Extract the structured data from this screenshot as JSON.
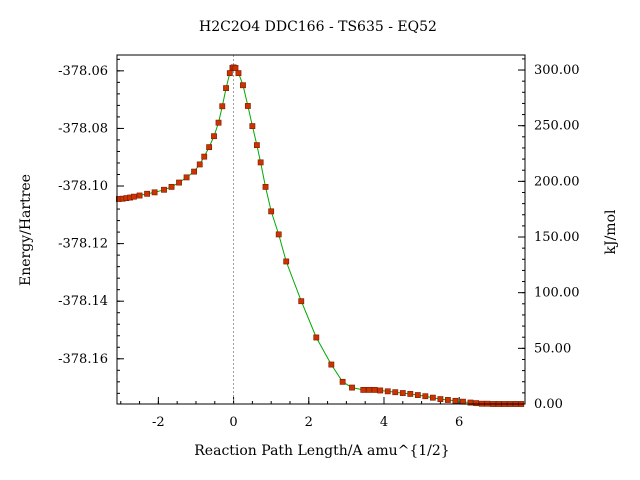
{
  "chart_data": {
    "type": "line",
    "title": "H2C2O4    DDC166 - TS635 - EQ52",
    "xlabel": "Reaction Path Length/A amu^{1/2}",
    "ylabel_left": "Energy/Hartree",
    "ylabel_right": "kJ/mol",
    "xlim": [
      -3.1,
      7.75
    ],
    "ylim_left": [
      -378.1757,
      -378.0545
    ],
    "ylim_right": [
      0,
      313.5
    ],
    "x_ticks": [
      -2,
      0,
      2,
      4,
      6
    ],
    "x_tick_labels": [
      "-2",
      "0",
      "2",
      "4",
      "6"
    ],
    "y_left_ticks": [
      -378.06,
      -378.08,
      -378.1,
      -378.12,
      -378.14,
      -378.16
    ],
    "y_left_tick_labels": [
      "-378.06",
      "-378.08",
      "-378.10",
      "-378.12",
      "-378.14",
      "-378.16"
    ],
    "y_right_ticks": [
      0,
      50,
      100,
      150,
      200,
      250,
      300
    ],
    "y_right_tick_labels": [
      "0.00",
      "50.00",
      "100.00",
      "150.00",
      "200.00",
      "250.00",
      "300.00"
    ],
    "ts_marker_x": 0,
    "grid": false,
    "colors": {
      "line": "#00aa00",
      "marker": "#cc3300",
      "marker_edge": "#7a1a00",
      "ts_line": "#888888"
    },
    "series": [
      {
        "points": [
          [
            -3.05,
            -378.1045
          ],
          [
            -2.95,
            -378.1044
          ],
          [
            -2.85,
            -378.1042
          ],
          [
            -2.75,
            -378.104
          ],
          [
            -2.65,
            -378.1037
          ],
          [
            -2.5,
            -378.1033
          ],
          [
            -2.3,
            -378.1027
          ],
          [
            -2.1,
            -378.1022
          ],
          [
            -1.85,
            -378.1013
          ],
          [
            -1.65,
            -378.1003
          ],
          [
            -1.45,
            -378.0988
          ],
          [
            -1.25,
            -378.097
          ],
          [
            -1.05,
            -378.095
          ],
          [
            -0.9,
            -378.0925
          ],
          [
            -0.78,
            -378.0898
          ],
          [
            -0.65,
            -378.0865
          ],
          [
            -0.52,
            -378.0827
          ],
          [
            -0.4,
            -378.078
          ],
          [
            -0.3,
            -378.0723
          ],
          [
            -0.2,
            -378.066
          ],
          [
            -0.1,
            -378.0608
          ],
          [
            -0.03,
            -378.059
          ],
          [
            0.0,
            -378.0588
          ],
          [
            0.05,
            -378.059
          ],
          [
            0.13,
            -378.0608
          ],
          [
            0.25,
            -378.065
          ],
          [
            0.38,
            -378.0722
          ],
          [
            0.5,
            -378.0792
          ],
          [
            0.62,
            -378.0858
          ],
          [
            0.72,
            -378.0918
          ],
          [
            0.85,
            -378.1003
          ],
          [
            1.0,
            -378.1088
          ],
          [
            1.2,
            -378.1168
          ],
          [
            1.4,
            -378.1262
          ],
          [
            1.8,
            -378.14
          ],
          [
            2.2,
            -378.1526
          ],
          [
            2.6,
            -378.162
          ],
          [
            2.9,
            -378.168
          ],
          [
            3.15,
            -378.17
          ],
          [
            3.45,
            -378.1708
          ],
          [
            3.6,
            -378.1708
          ],
          [
            3.75,
            -378.1708
          ],
          [
            3.9,
            -378.171
          ],
          [
            4.1,
            -378.1713
          ],
          [
            4.3,
            -378.1716
          ],
          [
            4.5,
            -378.1719
          ],
          [
            4.7,
            -378.1722
          ],
          [
            4.9,
            -378.1726
          ],
          [
            5.1,
            -378.173
          ],
          [
            5.3,
            -378.1735
          ],
          [
            5.5,
            -378.174
          ],
          [
            5.7,
            -378.1743
          ],
          [
            5.9,
            -378.1746
          ],
          [
            6.1,
            -378.1749
          ],
          [
            6.3,
            -378.1752
          ],
          [
            6.45,
            -378.1754
          ],
          [
            6.6,
            -378.1756
          ],
          [
            6.75,
            -378.1756
          ],
          [
            6.9,
            -378.1757
          ],
          [
            7.05,
            -378.1757
          ],
          [
            7.2,
            -378.1757
          ],
          [
            7.35,
            -378.1757
          ],
          [
            7.5,
            -378.1757
          ],
          [
            7.65,
            -378.1757
          ]
        ]
      }
    ]
  }
}
